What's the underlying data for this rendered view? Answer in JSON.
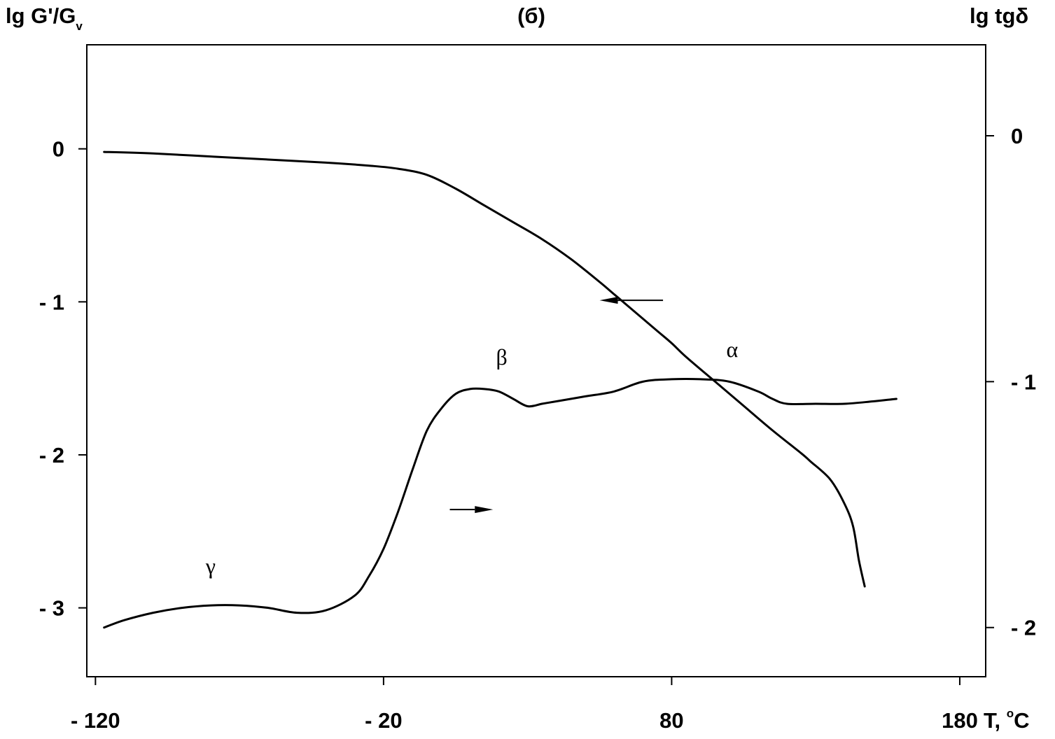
{
  "chart_data": {
    "type": "line",
    "title": "(б)",
    "xlabel": "T, °C",
    "xlabel_parts": {
      "text": "T, ",
      "deg": "o",
      "unit": "C"
    },
    "ylabel_left_parts": {
      "main": "lg G'/G",
      "sub": "v"
    },
    "ylabel_right": "lg tgδ",
    "x_ticks": [
      {
        "value": -120,
        "label": "- 120"
      },
      {
        "value": -20,
        "label": "- 20"
      },
      {
        "value": 80,
        "label": "80"
      },
      {
        "value": 180,
        "label": "180"
      }
    ],
    "y_left_ticks": [
      {
        "value": 0,
        "label": "0"
      },
      {
        "value": -1,
        "label": "- 1"
      },
      {
        "value": -2,
        "label": "- 2"
      },
      {
        "value": -3,
        "label": "- 3"
      }
    ],
    "y_right_ticks": [
      {
        "value": 0,
        "label": "0"
      },
      {
        "value": -1,
        "label": "- 1"
      },
      {
        "value": -2,
        "label": "- 2"
      }
    ],
    "xlim": [
      -123,
      189
    ],
    "ylim_left": [
      -3.45,
      0.68
    ],
    "ylim_right": [
      -2.2,
      0.37
    ],
    "grid": false,
    "series": [
      {
        "axis": "left",
        "x": [
          -117,
          -100,
          -80,
          -60,
          -40,
          -25,
          -15,
          -5,
          5,
          15,
          25,
          35,
          45,
          55,
          60,
          65,
          75,
          80,
          85,
          95,
          105,
          115,
          125,
          128,
          135,
          140,
          143,
          145,
          147
        ],
        "y": [
          -0.02,
          -0.03,
          -0.05,
          -0.07,
          -0.09,
          -0.11,
          -0.13,
          -0.17,
          -0.26,
          -0.37,
          -0.48,
          -0.59,
          -0.72,
          -0.87,
          -0.95,
          -1.03,
          -1.19,
          -1.27,
          -1.36,
          -1.52,
          -1.68,
          -1.84,
          -1.99,
          -2.04,
          -2.16,
          -2.32,
          -2.47,
          -2.69,
          -2.86
        ]
      },
      {
        "axis": "right",
        "x": [
          -117,
          -110,
          -100,
          -90,
          -80,
          -70,
          -60,
          -50,
          -40,
          -30,
          -25,
          -20,
          -15,
          -10,
          -5,
          0,
          5,
          10,
          15,
          20,
          25,
          30,
          35,
          40,
          50,
          60,
          70,
          80,
          90,
          100,
          110,
          115,
          120,
          130,
          140,
          150,
          158
        ],
        "y": [
          -2.0,
          -1.97,
          -1.94,
          -1.92,
          -1.91,
          -1.91,
          -1.92,
          -1.94,
          -1.93,
          -1.87,
          -1.79,
          -1.68,
          -1.53,
          -1.36,
          -1.2,
          -1.11,
          -1.05,
          -1.03,
          -1.03,
          -1.04,
          -1.07,
          -1.1,
          -1.09,
          -1.08,
          -1.06,
          -1.04,
          -1.0,
          -0.99,
          -0.99,
          -1.0,
          -1.04,
          -1.07,
          -1.09,
          -1.09,
          -1.09,
          -1.08,
          -1.07
        ]
      }
    ],
    "annotations": [
      {
        "text": "β",
        "x": 21,
        "axis": "right",
        "y": -0.93
      },
      {
        "text": "α",
        "x": 101,
        "axis": "right",
        "y": -0.9
      },
      {
        "text": "γ",
        "x": -80,
        "axis": "right",
        "y": -1.78
      }
    ],
    "arrows": [
      {
        "axis": "left",
        "y": -0.99,
        "from_x": 77,
        "to_x": 55,
        "points_to": "left"
      },
      {
        "axis": "right",
        "y": -1.52,
        "from_x": 3,
        "to_x": 18,
        "points_to": "right"
      }
    ]
  }
}
